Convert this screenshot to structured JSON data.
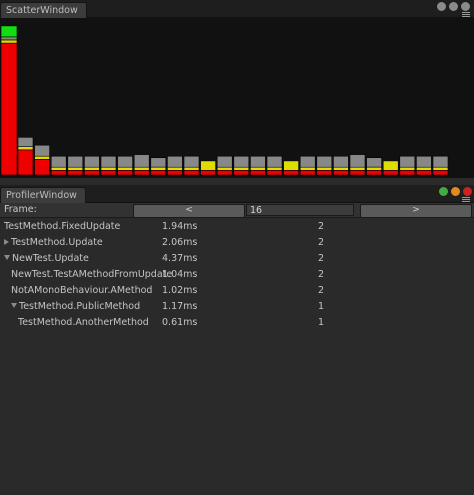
{
  "scatter_window": {
    "tab_label": "ScatterWindow",
    "chart_data": {
      "type": "bar",
      "stacked": true,
      "x_axis": "frame",
      "legend": "none",
      "colors": [
        "#ee0000",
        "#dddd00",
        "#888888",
        "#11dd11"
      ],
      "frames": [
        {
          "segments": [
            0.84,
            0.02,
            0.02,
            0.07
          ]
        },
        {
          "segments": [
            0.16,
            0.02,
            0.06
          ]
        },
        {
          "segments": [
            0.1,
            0.02,
            0.07
          ]
        },
        {
          "segments": [
            0.03,
            0.02,
            0.07
          ]
        },
        {
          "segments": [
            0.03,
            0.02,
            0.07
          ]
        },
        {
          "segments": [
            0.03,
            0.02,
            0.07
          ]
        },
        {
          "segments": [
            0.03,
            0.02,
            0.07
          ]
        },
        {
          "segments": [
            0.03,
            0.02,
            0.07
          ]
        },
        {
          "segments": [
            0.03,
            0.02,
            0.08
          ]
        },
        {
          "segments": [
            0.03,
            0.02,
            0.06
          ]
        },
        {
          "segments": [
            0.03,
            0.02,
            0.07
          ]
        },
        {
          "segments": [
            0.03,
            0.02,
            0.07
          ]
        },
        {
          "segments": [
            0.03,
            0.06,
            0.0
          ]
        },
        {
          "segments": [
            0.03,
            0.02,
            0.07
          ]
        },
        {
          "segments": [
            0.03,
            0.02,
            0.07
          ]
        },
        {
          "segments": [
            0.03,
            0.02,
            0.07
          ]
        },
        {
          "segments": [
            0.03,
            0.02,
            0.07
          ]
        },
        {
          "segments": [
            0.03,
            0.06,
            0.0
          ]
        },
        {
          "segments": [
            0.03,
            0.02,
            0.07
          ]
        },
        {
          "segments": [
            0.03,
            0.02,
            0.07
          ]
        },
        {
          "segments": [
            0.03,
            0.02,
            0.07
          ]
        },
        {
          "segments": [
            0.03,
            0.02,
            0.08
          ]
        },
        {
          "segments": [
            0.03,
            0.02,
            0.06
          ]
        },
        {
          "segments": [
            0.03,
            0.06,
            0.0
          ]
        },
        {
          "segments": [
            0.03,
            0.02,
            0.07
          ]
        },
        {
          "segments": [
            0.03,
            0.02,
            0.07
          ]
        },
        {
          "segments": [
            0.03,
            0.02,
            0.07
          ]
        }
      ]
    }
  },
  "profiler_window": {
    "tab_label": "ProfilerWindow",
    "frame_label": "Frame:",
    "prev_button": "<",
    "next_button": ">",
    "frame_value": "16",
    "rows": [
      {
        "name": "TestMethod.FixedUpdate",
        "time": "1.94ms",
        "count": "2",
        "depth": 0,
        "foldout": "none"
      },
      {
        "name": "TestMethod.Update",
        "time": "2.06ms",
        "count": "2",
        "depth": 0,
        "foldout": "closed"
      },
      {
        "name": "NewTest.Update",
        "time": "4.37ms",
        "count": "2",
        "depth": 0,
        "foldout": "open"
      },
      {
        "name": "NewTest.TestAMethodFromUpdate",
        "time": "1.04ms",
        "count": "2",
        "depth": 1,
        "foldout": "none"
      },
      {
        "name": "NotAMonoBehaviour.AMethod",
        "time": "1.02ms",
        "count": "2",
        "depth": 1,
        "foldout": "none"
      },
      {
        "name": "TestMethod.PublicMethod",
        "time": "1.17ms",
        "count": "1",
        "depth": 1,
        "foldout": "open"
      },
      {
        "name": "TestMethod.AnotherMethod",
        "time": "0.61ms",
        "count": "1",
        "depth": 2,
        "foldout": "none"
      }
    ]
  }
}
